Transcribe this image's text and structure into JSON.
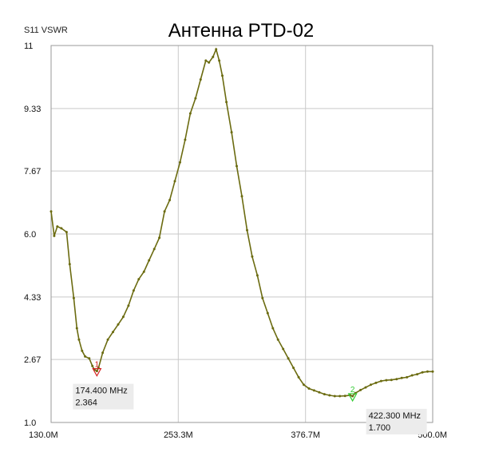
{
  "chart_data": {
    "type": "line",
    "title": "Антенна PTD-02",
    "ylabel": "S11 VSWR",
    "xlabel": "",
    "xlim": [
      130.0,
      500.0
    ],
    "ylim": [
      1.0,
      11.0
    ],
    "x_ticks": [
      {
        "value": 130.0,
        "label": "130.0M"
      },
      {
        "value": 253.3,
        "label": "253.3M"
      },
      {
        "value": 376.7,
        "label": "376.7M"
      },
      {
        "value": 500.0,
        "label": "500.0M"
      }
    ],
    "y_ticks": [
      {
        "value": 1.0,
        "label": "1.0"
      },
      {
        "value": 2.67,
        "label": "2.67"
      },
      {
        "value": 4.33,
        "label": "4.33"
      },
      {
        "value": 6.0,
        "label": "6.0"
      },
      {
        "value": 7.67,
        "label": "7.67"
      },
      {
        "value": 9.33,
        "label": "9.33"
      },
      {
        "value": 11.0,
        "label": "11"
      }
    ],
    "grid": true,
    "series": [
      {
        "color": "#6b6b10",
        "x": [
          130,
          133,
          136,
          140,
          145,
          148,
          152,
          155,
          157,
          160,
          163,
          167,
          170,
          172,
          174.4,
          176,
          180,
          185,
          190,
          195,
          200,
          205,
          210,
          215,
          220,
          225,
          230,
          235,
          240,
          245,
          250,
          255,
          260,
          265,
          270,
          275,
          280,
          283,
          287,
          290,
          293,
          296,
          300,
          305,
          310,
          315,
          320,
          325,
          330,
          335,
          340,
          345,
          350,
          355,
          360,
          365,
          370,
          375,
          380,
          385,
          390,
          395,
          400,
          405,
          410,
          415,
          420,
          422.3,
          425,
          430,
          435,
          440,
          445,
          450,
          455,
          460,
          465,
          470,
          475,
          480,
          485,
          490,
          495,
          500
        ],
        "y": [
          6.6,
          5.95,
          6.2,
          6.15,
          6.05,
          5.2,
          4.3,
          3.5,
          3.2,
          2.9,
          2.75,
          2.7,
          2.5,
          2.4,
          2.364,
          2.45,
          2.85,
          3.2,
          3.4,
          3.6,
          3.8,
          4.1,
          4.5,
          4.8,
          5.0,
          5.3,
          5.6,
          5.9,
          6.6,
          6.9,
          7.4,
          7.9,
          8.5,
          9.2,
          9.6,
          10.1,
          10.6,
          10.55,
          10.7,
          10.9,
          10.6,
          10.2,
          9.5,
          8.7,
          7.8,
          7.0,
          6.1,
          5.4,
          4.9,
          4.3,
          3.9,
          3.5,
          3.2,
          2.95,
          2.7,
          2.45,
          2.2,
          2.0,
          1.9,
          1.85,
          1.8,
          1.75,
          1.72,
          1.7,
          1.7,
          1.705,
          1.72,
          1.7,
          1.78,
          1.86,
          1.93,
          2.0,
          2.05,
          2.1,
          2.12,
          2.13,
          2.15,
          2.18,
          2.2,
          2.25,
          2.28,
          2.33,
          2.35,
          2.35
        ]
      }
    ],
    "markers": [
      {
        "number": "1",
        "x": 174.4,
        "y": 2.364,
        "freq_label": "174.400 MHz",
        "value_label": "2.364",
        "color": "#d62020"
      },
      {
        "number": "2",
        "x": 422.3,
        "y": 1.7,
        "freq_label": "422.300 MHz",
        "value_label": "1.700",
        "color": "#33cc33"
      }
    ]
  }
}
